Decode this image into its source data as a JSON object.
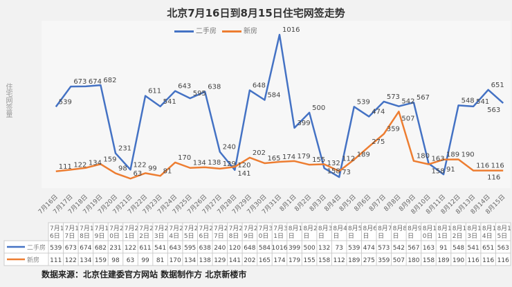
{
  "chart_data": {
    "type": "line",
    "title": "北京7月16日到8月15日住宅网签走势",
    "ylabel": "住宅网签量",
    "xlabel": "",
    "ylim": [
      0,
      1100
    ],
    "grid": false,
    "legend": "top",
    "categories": [
      "7月16日",
      "7月17日",
      "7月18日",
      "7月19日",
      "7月20日",
      "7月21日",
      "7月22日",
      "7月23日",
      "7月24日",
      "7月25日",
      "7月26日",
      "7月27日",
      "7月28日",
      "7月29日",
      "7月30日",
      "7月31日",
      "8月1日",
      "8月2日",
      "8月3日",
      "8月4日",
      "8月5日",
      "8月6日",
      "8月7日",
      "8月8日",
      "8月9日",
      "8月10日",
      "8月11日",
      "8月12日",
      "8月13日",
      "8月14日",
      "8月15日"
    ],
    "series": [
      {
        "name": "二手房",
        "color": "#4472c4",
        "values": [
          539,
          673,
          674,
          682,
          231,
          122,
          611,
          541,
          643,
          595,
          638,
          240,
          120,
          648,
          584,
          1016,
          399,
          500,
          132,
          73,
          539,
          474,
          573,
          542,
          567,
          163,
          91,
          548,
          541,
          651,
          563
        ]
      },
      {
        "name": "新房",
        "color": "#ed7d31",
        "values": [
          111,
          122,
          134,
          159,
          98,
          63,
          99,
          81,
          170,
          134,
          138,
          129,
          141,
          202,
          165,
          174,
          179,
          155,
          158,
          112,
          189,
          275,
          359,
          507,
          180,
          158,
          189,
          190,
          116,
          116,
          116
        ]
      }
    ]
  },
  "source": "数据来源：北京住建委官方网站  数据制作方 北京新楼市"
}
